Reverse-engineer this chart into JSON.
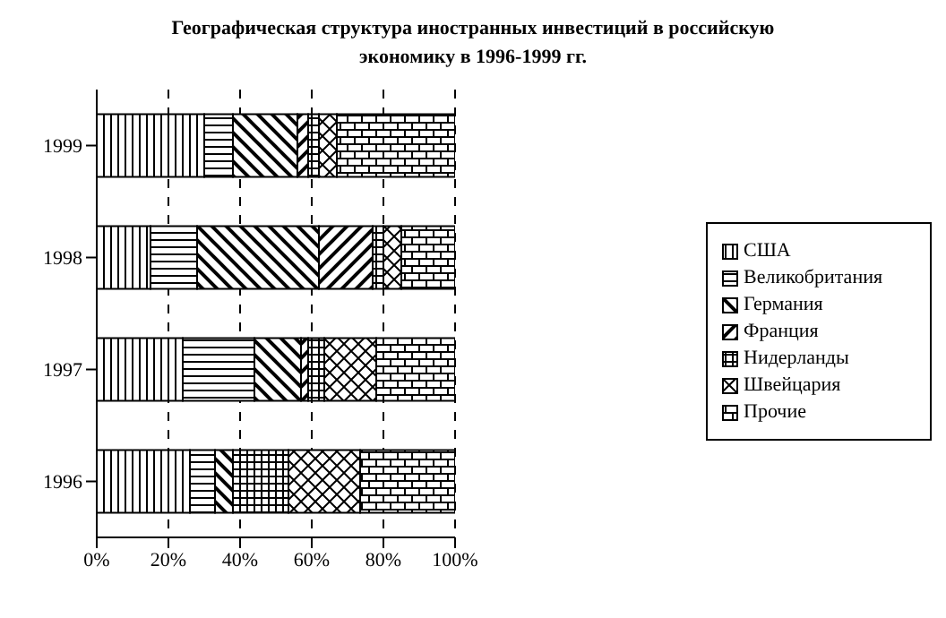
{
  "chart_data": {
    "type": "bar",
    "orientation": "horizontal",
    "stacked": true,
    "title": "Географическая структура иностранных инвестиций в российскую экономику в 1996-1999 гг.",
    "categories": [
      "1999",
      "1998",
      "1997",
      "1996"
    ],
    "series": [
      {
        "name": "США",
        "color": "#000000",
        "values": [
          30,
          15,
          24,
          26
        ]
      },
      {
        "name": "Великобритания",
        "color": "#000000",
        "values": [
          8,
          13,
          20,
          7
        ]
      },
      {
        "name": "Германия",
        "color": "#000000",
        "values": [
          18,
          34,
          13,
          5
        ]
      },
      {
        "name": "Франция",
        "color": "#000000",
        "values": [
          3,
          15,
          2,
          0
        ]
      },
      {
        "name": "Нидерланды",
        "color": "#000000",
        "values": [
          3,
          3,
          4.5,
          15.5
        ]
      },
      {
        "name": "Швейцария",
        "color": "#000000",
        "values": [
          5,
          5,
          14.5,
          20
        ]
      },
      {
        "name": "Прочие",
        "color": "#000000",
        "values": [
          33,
          15,
          22,
          26.5
        ]
      }
    ],
    "xlim": [
      0,
      100
    ],
    "xticks": [
      {
        "value": 0,
        "label": "0%"
      },
      {
        "value": 20,
        "label": "20%"
      },
      {
        "value": 40,
        "label": "40%"
      },
      {
        "value": 60,
        "label": "60%"
      },
      {
        "value": 80,
        "label": "80%"
      },
      {
        "value": 100,
        "label": "100%"
      }
    ],
    "grid": "x",
    "legend": "right"
  }
}
